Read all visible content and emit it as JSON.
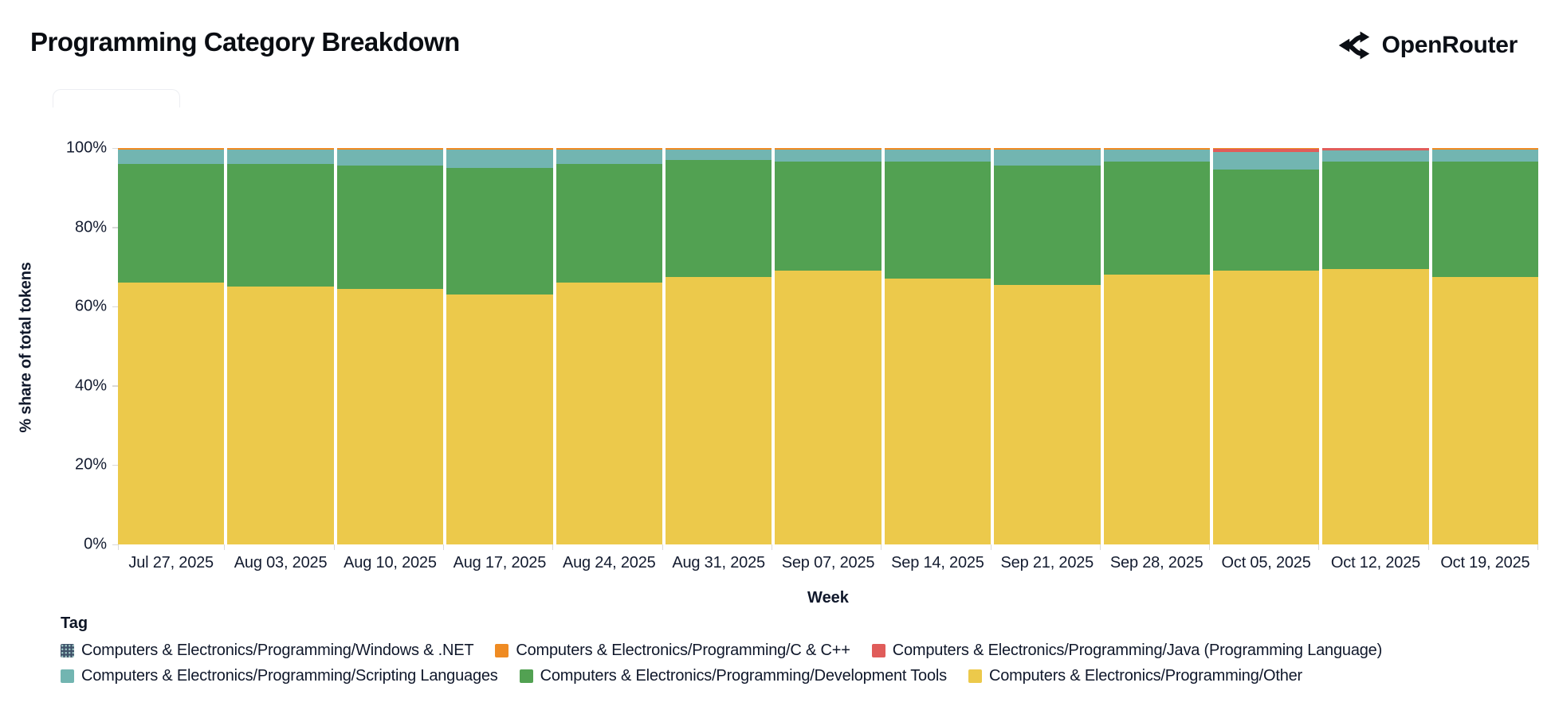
{
  "header": {
    "title": "Programming Category Breakdown",
    "brand_name": "OpenRouter"
  },
  "chart_data": {
    "type": "bar",
    "variant": "stacked-percent",
    "title": "Programming Category Breakdown",
    "xlabel": "Week",
    "ylabel": "% share of total tokens",
    "ylim": [
      0,
      100
    ],
    "grid": false,
    "legend_title": "Tag",
    "legend_position": "bottom",
    "y_tick_labels": [
      "0%",
      "20%",
      "40%",
      "60%",
      "80%",
      "100%"
    ],
    "categories": [
      "Jul 27, 2025",
      "Aug 03, 2025",
      "Aug 10, 2025",
      "Aug 17, 2025",
      "Aug 24, 2025",
      "Aug 31, 2025",
      "Sep 07, 2025",
      "Sep 14, 2025",
      "Sep 21, 2025",
      "Sep 28, 2025",
      "Oct 05, 2025",
      "Oct 12, 2025",
      "Oct 19, 2025"
    ],
    "stack_note": "first series is at the bottom of each bar",
    "series": [
      {
        "key": "other",
        "name": "Computers & Electronics/Programming/Other",
        "color": "#ecc94b",
        "values": [
          66,
          65,
          64.5,
          63,
          66,
          67.5,
          69,
          67,
          65.5,
          68,
          69,
          69.5,
          67.5
        ]
      },
      {
        "key": "development-tools",
        "name": "Computers & Electronics/Programming/Development Tools",
        "color": "#52a152",
        "values": [
          30,
          31,
          31,
          32,
          30,
          29.5,
          27.5,
          29.5,
          30,
          28.5,
          25.5,
          27,
          29
        ]
      },
      {
        "key": "scripting-languages",
        "name": "Computers & Electronics/Programming/Scripting Languages",
        "color": "#72b5b1",
        "values": [
          3.6,
          3.6,
          4.1,
          4.6,
          3.6,
          2.6,
          3.1,
          3.1,
          4.1,
          3.1,
          4.4,
          2.9,
          3.1
        ]
      },
      {
        "key": "java",
        "name": "Computers & Electronics/Programming/Java (Programming Language)",
        "color": "#e05c5a",
        "values": [
          0.05,
          0.05,
          0.05,
          0.05,
          0.05,
          0.05,
          0.05,
          0.05,
          0.05,
          0.05,
          0.9,
          0.5,
          0.05
        ]
      },
      {
        "key": "c-cpp",
        "name": "Computers & Electronics/Programming/C & C++",
        "color": "#ef8b23",
        "values": [
          0.3,
          0.3,
          0.3,
          0.3,
          0.3,
          0.3,
          0.3,
          0.3,
          0.3,
          0.3,
          0.15,
          0.05,
          0.3
        ]
      },
      {
        "key": "windows-dotnet",
        "name": "Computers & Electronics/Programming/Windows & .NET",
        "color": "#41536b",
        "pattern": "dots",
        "values": [
          0.05,
          0.05,
          0.05,
          0.05,
          0.05,
          0.05,
          0.05,
          0.05,
          0.05,
          0.05,
          0.05,
          0.05,
          0.05
        ]
      }
    ]
  },
  "legend": {
    "title": "Tag",
    "items": [
      {
        "key": "windows-dotnet",
        "label": "Computers & Electronics/Programming/Windows & .NET",
        "color": "#41536b",
        "pattern": "dots"
      },
      {
        "key": "c-cpp",
        "label": "Computers & Electronics/Programming/C & C++",
        "color": "#ef8b23"
      },
      {
        "key": "java",
        "label": "Computers & Electronics/Programming/Java (Programming Language)",
        "color": "#e05c5a"
      },
      {
        "key": "scripting-languages",
        "label": "Computers & Electronics/Programming/Scripting Languages",
        "color": "#72b5b1"
      },
      {
        "key": "development-tools",
        "label": "Computers & Electronics/Programming/Development Tools",
        "color": "#52a152"
      },
      {
        "key": "other",
        "label": "Computers & Electronics/Programming/Other",
        "color": "#ecc94b"
      }
    ]
  }
}
